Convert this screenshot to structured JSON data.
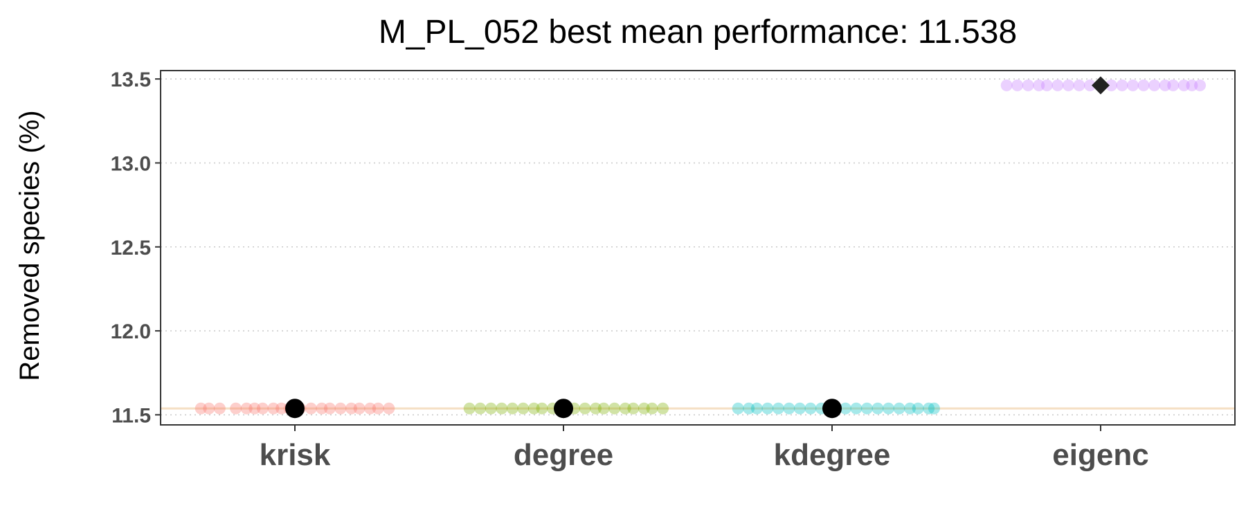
{
  "chart_data": {
    "type": "scatter",
    "title": "M_PL_052 best mean performance: 11.538",
    "xlabel": "",
    "ylabel": "Removed species (%)",
    "categories": [
      "krisk",
      "degree",
      "kdegree",
      "eigenc"
    ],
    "ylim": [
      11.44,
      13.55
    ],
    "yticks": [
      11.5,
      12.0,
      12.5,
      13.0,
      13.5
    ],
    "ytick_labels": [
      "11.5",
      "12.0",
      "12.5",
      "13.0",
      "13.5"
    ],
    "grid": "horizontal dotted",
    "reference_line": {
      "y": 11.538,
      "color": "#f5dfc3"
    },
    "series": [
      {
        "category": "krisk",
        "color": "#f8766d",
        "values": [
          11.538
        ],
        "spread": [
          -0.35,
          -0.32,
          -0.28,
          -0.22,
          -0.18,
          -0.15,
          -0.12,
          -0.08,
          -0.05,
          -0.02,
          0.02,
          0.06,
          0.1,
          0.13,
          0.17,
          0.21,
          0.24,
          0.28,
          0.31,
          0.35
        ],
        "mean": 11.538,
        "mean_marker": "circle"
      },
      {
        "category": "degree",
        "color": "#7cae00",
        "values": [
          11.538
        ],
        "spread": [
          -0.35,
          -0.31,
          -0.27,
          -0.23,
          -0.19,
          -0.15,
          -0.11,
          -0.08,
          -0.04,
          0.0,
          0.04,
          0.08,
          0.12,
          0.15,
          0.19,
          0.23,
          0.26,
          0.3,
          0.33,
          0.37
        ],
        "mean": 11.538,
        "mean_marker": "circle"
      },
      {
        "category": "kdegree",
        "color": "#00bfc4",
        "values": [
          11.538
        ],
        "spread": [
          -0.35,
          -0.31,
          -0.28,
          -0.24,
          -0.2,
          -0.16,
          -0.12,
          -0.08,
          -0.04,
          0.0,
          0.05,
          0.09,
          0.13,
          0.17,
          0.21,
          0.25,
          0.29,
          0.32,
          0.36,
          0.38
        ],
        "mean": 11.538,
        "mean_marker": "circle"
      },
      {
        "category": "eigenc",
        "color": "#c77cff",
        "values": [
          13.462
        ],
        "spread": [
          -0.35,
          -0.31,
          -0.27,
          -0.23,
          -0.2,
          -0.16,
          -0.12,
          -0.08,
          -0.04,
          0.0,
          0.04,
          0.08,
          0.12,
          0.16,
          0.2,
          0.24,
          0.27,
          0.31,
          0.34,
          0.37
        ],
        "mean": 13.462,
        "mean_marker": "diamond"
      }
    ]
  }
}
